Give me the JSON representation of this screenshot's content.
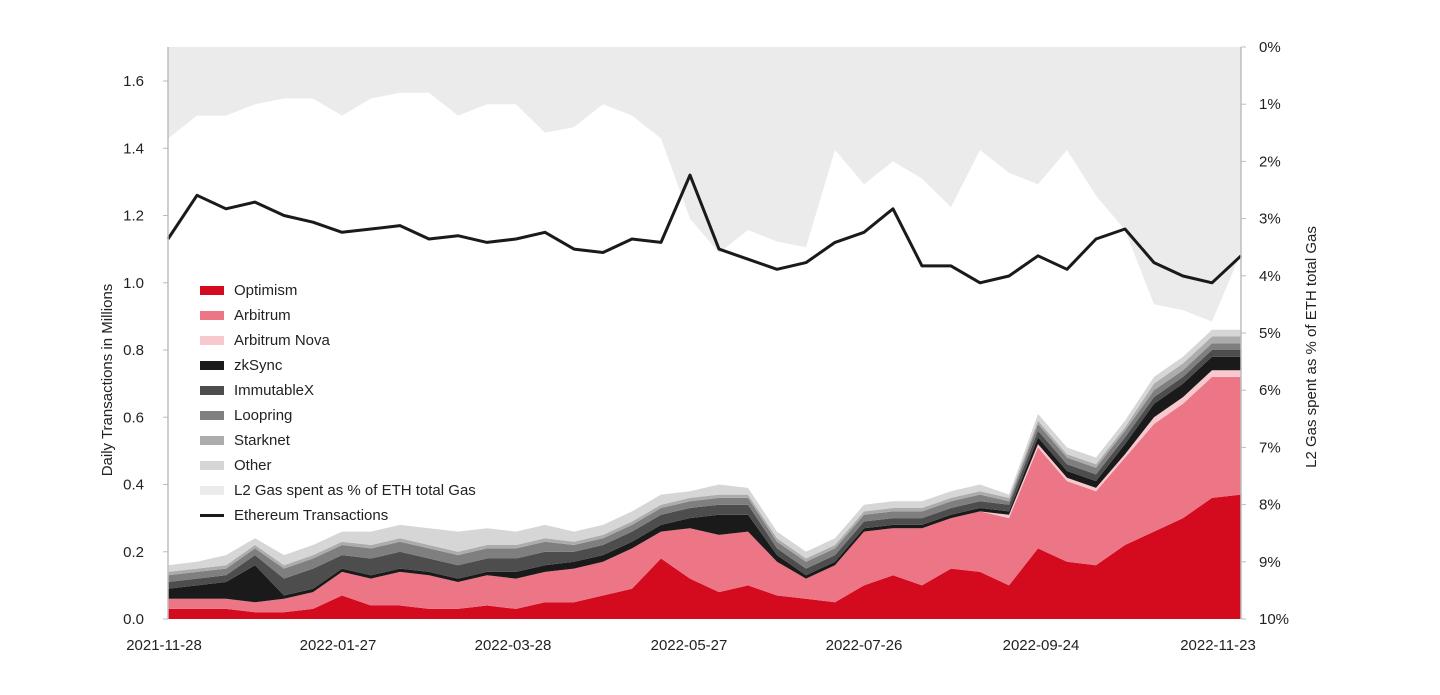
{
  "chart_data": {
    "type": "area",
    "title": "",
    "xlabel": "",
    "ylabel": "Daily Transactions in Millions",
    "y2label": "L2 Gas spent as % of ETH total Gas",
    "ylim": [
      0,
      1.7
    ],
    "y2lim_inverted": [
      0,
      10
    ],
    "yticks": [
      "0.0",
      "0.2",
      "0.4",
      "0.6",
      "0.8",
      "1.0",
      "1.2",
      "1.4",
      "1.6"
    ],
    "y2ticks": [
      "0%",
      "1%",
      "2%",
      "3%",
      "4%",
      "5%",
      "6%",
      "7%",
      "8%",
      "9%",
      "10%"
    ],
    "xticks": [
      "2021-11-28",
      "2022-01-27",
      "2022-03-28",
      "2022-05-27",
      "2022-07-26",
      "2022-09-24",
      "2022-11-23"
    ],
    "legend_position": "inside-left",
    "grid": false,
    "x": [
      "2021-11-28",
      "2021-12-08",
      "2021-12-18",
      "2021-12-28",
      "2022-01-07",
      "2022-01-17",
      "2022-01-27",
      "2022-02-06",
      "2022-02-16",
      "2022-02-26",
      "2022-03-08",
      "2022-03-18",
      "2022-03-28",
      "2022-04-07",
      "2022-04-17",
      "2022-04-27",
      "2022-05-07",
      "2022-05-17",
      "2022-05-27",
      "2022-06-06",
      "2022-06-16",
      "2022-06-26",
      "2022-07-06",
      "2022-07-16",
      "2022-07-26",
      "2022-08-05",
      "2022-08-15",
      "2022-08-25",
      "2022-09-04",
      "2022-09-14",
      "2022-09-24",
      "2022-10-04",
      "2022-10-14",
      "2022-10-24",
      "2022-11-03",
      "2022-11-13",
      "2022-11-23",
      "2022-11-28"
    ],
    "series": [
      {
        "name": "Optimism",
        "color": "#d40a1e",
        "values": [
          0.03,
          0.03,
          0.03,
          0.02,
          0.02,
          0.03,
          0.07,
          0.04,
          0.04,
          0.03,
          0.03,
          0.04,
          0.03,
          0.05,
          0.05,
          0.07,
          0.09,
          0.18,
          0.12,
          0.08,
          0.1,
          0.07,
          0.06,
          0.05,
          0.1,
          0.13,
          0.1,
          0.15,
          0.14,
          0.1,
          0.21,
          0.17,
          0.16,
          0.22,
          0.26,
          0.3,
          0.36,
          0.37
        ]
      },
      {
        "name": "Arbitrum",
        "color": "#ec7686",
        "values": [
          0.03,
          0.03,
          0.03,
          0.03,
          0.04,
          0.05,
          0.07,
          0.08,
          0.1,
          0.1,
          0.08,
          0.09,
          0.09,
          0.09,
          0.1,
          0.1,
          0.12,
          0.08,
          0.15,
          0.17,
          0.16,
          0.1,
          0.06,
          0.11,
          0.16,
          0.14,
          0.17,
          0.15,
          0.18,
          0.2,
          0.3,
          0.24,
          0.22,
          0.26,
          0.32,
          0.34,
          0.36,
          0.35
        ]
      },
      {
        "name": "Arbitrum Nova",
        "color": "#f7c9ce",
        "values": [
          0,
          0,
          0,
          0,
          0,
          0,
          0,
          0,
          0,
          0,
          0,
          0,
          0,
          0,
          0,
          0,
          0,
          0,
          0,
          0,
          0,
          0,
          0,
          0,
          0,
          0,
          0,
          0,
          0,
          0.01,
          0.01,
          0.01,
          0.01,
          0.01,
          0.02,
          0.02,
          0.02,
          0.02
        ]
      },
      {
        "name": "zkSync",
        "color": "#1a1a1a",
        "values": [
          0.03,
          0.04,
          0.05,
          0.11,
          0.01,
          0.01,
          0.01,
          0.01,
          0.01,
          0.01,
          0.01,
          0.01,
          0.02,
          0.02,
          0.02,
          0.02,
          0.02,
          0.02,
          0.03,
          0.06,
          0.05,
          0.02,
          0.01,
          0.01,
          0.01,
          0.01,
          0.01,
          0.01,
          0.01,
          0.01,
          0.02,
          0.02,
          0.02,
          0.03,
          0.04,
          0.04,
          0.04,
          0.04
        ]
      },
      {
        "name": "ImmutableX",
        "color": "#4d4d4d",
        "values": [
          0.02,
          0.02,
          0.02,
          0.03,
          0.05,
          0.06,
          0.04,
          0.05,
          0.05,
          0.04,
          0.04,
          0.04,
          0.04,
          0.04,
          0.03,
          0.03,
          0.03,
          0.03,
          0.03,
          0.03,
          0.03,
          0.02,
          0.02,
          0.02,
          0.02,
          0.02,
          0.02,
          0.02,
          0.02,
          0.02,
          0.02,
          0.02,
          0.02,
          0.02,
          0.02,
          0.02,
          0.02,
          0.02
        ]
      },
      {
        "name": "Loopring",
        "color": "#7f7f7f",
        "values": [
          0.02,
          0.02,
          0.02,
          0.02,
          0.03,
          0.03,
          0.03,
          0.03,
          0.03,
          0.03,
          0.03,
          0.03,
          0.03,
          0.03,
          0.02,
          0.02,
          0.02,
          0.02,
          0.02,
          0.02,
          0.02,
          0.02,
          0.02,
          0.02,
          0.02,
          0.02,
          0.02,
          0.02,
          0.02,
          0.01,
          0.02,
          0.02,
          0.02,
          0.02,
          0.02,
          0.02,
          0.02,
          0.02
        ]
      },
      {
        "name": "Starknet",
        "color": "#acacac",
        "values": [
          0.01,
          0.01,
          0.01,
          0.01,
          0.01,
          0.01,
          0.01,
          0.01,
          0.01,
          0.01,
          0.01,
          0.01,
          0.01,
          0.01,
          0.01,
          0.01,
          0.01,
          0.01,
          0.01,
          0.01,
          0.01,
          0.01,
          0.01,
          0.01,
          0.01,
          0.01,
          0.01,
          0.01,
          0.01,
          0.01,
          0.01,
          0.01,
          0.01,
          0.01,
          0.02,
          0.02,
          0.02,
          0.02
        ]
      },
      {
        "name": "Other",
        "color": "#d6d6d6",
        "values": [
          0.02,
          0.02,
          0.03,
          0.02,
          0.03,
          0.03,
          0.03,
          0.04,
          0.04,
          0.05,
          0.06,
          0.05,
          0.04,
          0.04,
          0.03,
          0.03,
          0.03,
          0.03,
          0.02,
          0.03,
          0.02,
          0.02,
          0.02,
          0.02,
          0.02,
          0.02,
          0.02,
          0.02,
          0.02,
          0.01,
          0.02,
          0.02,
          0.02,
          0.02,
          0.02,
          0.02,
          0.02,
          0.02
        ]
      }
    ],
    "overlay_series": [
      {
        "name": "L2 Gas spent as % of ETH total Gas",
        "axis": "right-inverted",
        "color": "#ebebeb",
        "values": [
          1.6,
          1.2,
          1.2,
          1.0,
          0.9,
          0.9,
          1.2,
          0.9,
          0.8,
          0.8,
          1.2,
          1.0,
          1.0,
          1.5,
          1.4,
          1.0,
          1.2,
          1.6,
          3.0,
          3.6,
          3.2,
          3.4,
          3.5,
          1.8,
          2.4,
          2.0,
          2.3,
          2.8,
          1.8,
          2.2,
          2.4,
          1.8,
          2.6,
          3.2,
          4.5,
          4.6,
          4.8,
          3.6
        ]
      },
      {
        "name": "Ethereum Transactions",
        "axis": "left",
        "color": "#1a1a1a",
        "values": [
          1.13,
          1.26,
          1.22,
          1.24,
          1.2,
          1.18,
          1.15,
          1.16,
          1.17,
          1.13,
          1.14,
          1.12,
          1.13,
          1.15,
          1.1,
          1.09,
          1.13,
          1.12,
          1.32,
          1.1,
          1.07,
          1.04,
          1.06,
          1.12,
          1.15,
          1.22,
          1.05,
          1.05,
          1.0,
          1.02,
          1.08,
          1.04,
          1.13,
          1.16,
          1.06,
          1.02,
          1.0,
          1.08
        ]
      }
    ]
  },
  "legend": {
    "items": [
      {
        "label": "Optimism",
        "color": "#d40a1e",
        "kind": "swatch"
      },
      {
        "label": "Arbitrum",
        "color": "#ec7686",
        "kind": "swatch"
      },
      {
        "label": "Arbitrum Nova",
        "color": "#f7c9ce",
        "kind": "swatch"
      },
      {
        "label": "zkSync",
        "color": "#1a1a1a",
        "kind": "swatch"
      },
      {
        "label": "ImmutableX",
        "color": "#4d4d4d",
        "kind": "swatch"
      },
      {
        "label": "Loopring",
        "color": "#7f7f7f",
        "kind": "swatch"
      },
      {
        "label": "Starknet",
        "color": "#acacac",
        "kind": "swatch"
      },
      {
        "label": "Other",
        "color": "#d6d6d6",
        "kind": "swatch"
      },
      {
        "label": "L2 Gas spent as % of ETH total Gas",
        "color": "#ebebeb",
        "kind": "swatch"
      },
      {
        "label": "Ethereum Transactions",
        "color": "#1a1a1a",
        "kind": "line"
      }
    ]
  }
}
